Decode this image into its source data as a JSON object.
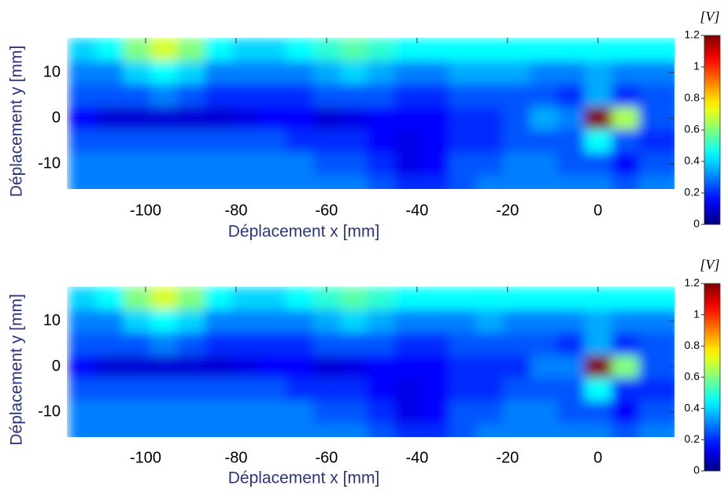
{
  "chart_data": [
    {
      "type": "heatmap",
      "colormap": "jet",
      "xlabel": "Déplacement x [mm]",
      "ylabel": "Déplacement y [mm]",
      "xlim": [
        -117.4,
        16.9
      ],
      "ylim": [
        -15.5,
        17.6
      ],
      "xticks": [
        -100,
        -80,
        -60,
        -40,
        -20,
        0
      ],
      "yticks": [
        -10,
        0,
        10
      ],
      "x": [
        -114,
        -108,
        -102,
        -96,
        -90,
        -84,
        -78,
        -72,
        -66,
        -60,
        -54,
        -48,
        -42,
        -36,
        -30,
        -24,
        -18,
        -12,
        -6,
        0,
        6,
        12
      ],
      "y": [
        15,
        10,
        5,
        0,
        -5,
        -10,
        -15
      ],
      "values": [
        [
          0.4,
          0.45,
          0.6,
          0.7,
          0.6,
          0.45,
          0.4,
          0.4,
          0.45,
          0.5,
          0.55,
          0.5,
          0.45,
          0.45,
          0.45,
          0.45,
          0.45,
          0.45,
          0.45,
          0.45,
          0.45,
          0.45
        ],
        [
          0.3,
          0.3,
          0.4,
          0.45,
          0.4,
          0.3,
          0.3,
          0.3,
          0.3,
          0.35,
          0.4,
          0.35,
          0.3,
          0.3,
          0.35,
          0.35,
          0.35,
          0.3,
          0.3,
          0.35,
          0.3,
          0.3
        ],
        [
          0.25,
          0.25,
          0.25,
          0.3,
          0.25,
          0.2,
          0.2,
          0.2,
          0.2,
          0.25,
          0.25,
          0.25,
          0.2,
          0.2,
          0.25,
          0.25,
          0.25,
          0.25,
          0.2,
          0.35,
          0.2,
          0.25
        ],
        [
          0.15,
          0.1,
          0.1,
          0.1,
          0.1,
          0.1,
          0.12,
          0.15,
          0.15,
          0.1,
          0.12,
          0.15,
          0.15,
          0.15,
          0.2,
          0.2,
          0.25,
          0.35,
          0.3,
          1.2,
          0.65,
          0.25
        ],
        [
          0.25,
          0.25,
          0.25,
          0.25,
          0.25,
          0.25,
          0.25,
          0.25,
          0.2,
          0.2,
          0.2,
          0.15,
          0.12,
          0.15,
          0.2,
          0.2,
          0.25,
          0.25,
          0.25,
          0.45,
          0.25,
          0.2
        ],
        [
          0.3,
          0.3,
          0.3,
          0.3,
          0.3,
          0.3,
          0.3,
          0.3,
          0.3,
          0.25,
          0.25,
          0.2,
          0.12,
          0.15,
          0.25,
          0.25,
          0.3,
          0.3,
          0.25,
          0.25,
          0.15,
          0.25
        ],
        [
          0.3,
          0.3,
          0.3,
          0.3,
          0.3,
          0.3,
          0.3,
          0.3,
          0.3,
          0.3,
          0.3,
          0.25,
          0.2,
          0.2,
          0.25,
          0.3,
          0.3,
          0.3,
          0.3,
          0.3,
          0.25,
          0.3
        ]
      ],
      "colorbar": {
        "label": "[V]",
        "lim": [
          0,
          1.2
        ],
        "ticks": [
          0,
          0.2,
          0.4,
          0.6,
          0.8,
          1,
          1.2
        ]
      }
    },
    {
      "type": "heatmap",
      "colormap": "jet",
      "xlabel": "Déplacement x [mm]",
      "ylabel": "Déplacement y [mm]",
      "xlim": [
        -117.4,
        16.9
      ],
      "ylim": [
        -15.5,
        17.6
      ],
      "xticks": [
        -100,
        -80,
        -60,
        -40,
        -20,
        0
      ],
      "yticks": [
        -10,
        0,
        10
      ],
      "x": [
        -114,
        -108,
        -102,
        -96,
        -90,
        -84,
        -78,
        -72,
        -66,
        -60,
        -54,
        -48,
        -42,
        -36,
        -30,
        -24,
        -18,
        -12,
        -6,
        0,
        6,
        12
      ],
      "y": [
        15,
        10,
        5,
        0,
        -5,
        -10,
        -15
      ],
      "values": [
        [
          0.4,
          0.45,
          0.6,
          0.7,
          0.6,
          0.45,
          0.4,
          0.4,
          0.45,
          0.5,
          0.55,
          0.5,
          0.45,
          0.45,
          0.45,
          0.45,
          0.45,
          0.45,
          0.45,
          0.45,
          0.45,
          0.45
        ],
        [
          0.3,
          0.3,
          0.4,
          0.45,
          0.4,
          0.3,
          0.3,
          0.3,
          0.3,
          0.35,
          0.4,
          0.35,
          0.3,
          0.3,
          0.3,
          0.35,
          0.3,
          0.3,
          0.3,
          0.35,
          0.3,
          0.3
        ],
        [
          0.25,
          0.25,
          0.25,
          0.3,
          0.25,
          0.2,
          0.2,
          0.2,
          0.2,
          0.25,
          0.25,
          0.25,
          0.2,
          0.2,
          0.25,
          0.25,
          0.25,
          0.25,
          0.2,
          0.35,
          0.2,
          0.25
        ],
        [
          0.15,
          0.1,
          0.1,
          0.1,
          0.1,
          0.1,
          0.12,
          0.15,
          0.15,
          0.1,
          0.12,
          0.15,
          0.15,
          0.15,
          0.2,
          0.2,
          0.2,
          0.3,
          0.3,
          1.2,
          0.6,
          0.25
        ],
        [
          0.25,
          0.25,
          0.25,
          0.25,
          0.25,
          0.25,
          0.25,
          0.25,
          0.2,
          0.2,
          0.2,
          0.15,
          0.12,
          0.15,
          0.2,
          0.2,
          0.25,
          0.25,
          0.25,
          0.45,
          0.2,
          0.2
        ],
        [
          0.3,
          0.3,
          0.3,
          0.3,
          0.3,
          0.3,
          0.3,
          0.3,
          0.3,
          0.25,
          0.25,
          0.2,
          0.12,
          0.15,
          0.25,
          0.25,
          0.3,
          0.3,
          0.25,
          0.25,
          0.15,
          0.25
        ],
        [
          0.3,
          0.3,
          0.3,
          0.3,
          0.3,
          0.3,
          0.3,
          0.3,
          0.3,
          0.3,
          0.3,
          0.25,
          0.2,
          0.2,
          0.25,
          0.3,
          0.3,
          0.3,
          0.3,
          0.3,
          0.25,
          0.3
        ]
      ],
      "colorbar": {
        "label": "[V]",
        "lim": [
          0,
          1.2
        ],
        "ticks": [
          0,
          0.2,
          0.4,
          0.6,
          0.8,
          1,
          1.2
        ]
      }
    }
  ]
}
